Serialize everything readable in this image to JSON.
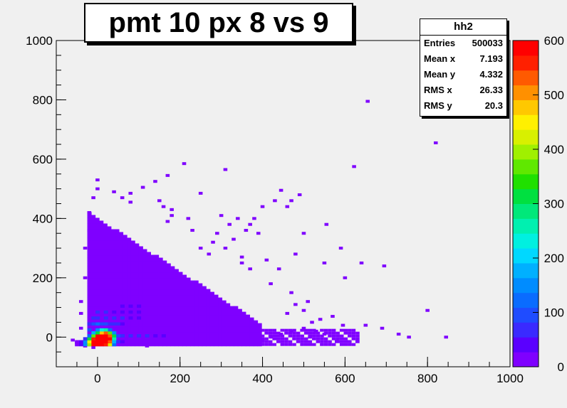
{
  "chart_data": {
    "type": "heatmap",
    "title": "pmt 10 px 8 vs 9",
    "xlim": [
      -100,
      1000
    ],
    "ylim": [
      -100,
      1000
    ],
    "x_ticks": [
      0,
      200,
      400,
      600,
      800,
      1000
    ],
    "y_ticks": [
      0,
      200,
      400,
      600,
      800,
      1000
    ],
    "colorbar": {
      "range": [
        0,
        600
      ],
      "ticks": [
        0,
        100,
        200,
        300,
        400,
        500,
        600
      ],
      "palette": [
        "#7f00ff",
        "#5a00ff",
        "#3a2aff",
        "#1f4cff",
        "#0a6cff",
        "#008cff",
        "#00b0ff",
        "#00d8ff",
        "#00f0e0",
        "#00f0b0",
        "#00e87a",
        "#00e040",
        "#20e000",
        "#60e800",
        "#a0f000",
        "#d8f000",
        "#fff000",
        "#ffc800",
        "#ff9000",
        "#ff5a00",
        "#ff2000",
        "#ff0000"
      ]
    },
    "bin_width": 9.6,
    "cells": [
      [
        -50,
        -25,
        8
      ],
      [
        -40,
        -25,
        40
      ],
      [
        -30,
        -25,
        140
      ],
      [
        -20,
        -25,
        400
      ],
      [
        -10,
        -25,
        580
      ],
      [
        0,
        -25,
        600
      ],
      [
        10,
        -25,
        600
      ],
      [
        20,
        -25,
        560
      ],
      [
        30,
        -25,
        420
      ],
      [
        40,
        -25,
        120
      ],
      [
        -50,
        -15,
        6
      ],
      [
        -40,
        -15,
        30
      ],
      [
        -30,
        -15,
        160
      ],
      [
        -20,
        -15,
        450
      ],
      [
        -10,
        -15,
        600
      ],
      [
        0,
        -15,
        600
      ],
      [
        10,
        -15,
        600
      ],
      [
        20,
        -15,
        600
      ],
      [
        30,
        -15,
        520
      ],
      [
        40,
        -15,
        180
      ],
      [
        50,
        -15,
        60
      ],
      [
        60,
        -15,
        40
      ],
      [
        -30,
        -5,
        80
      ],
      [
        -20,
        -5,
        300
      ],
      [
        -10,
        -5,
        560
      ],
      [
        0,
        -5,
        600
      ],
      [
        10,
        -5,
        600
      ],
      [
        20,
        -5,
        600
      ],
      [
        30,
        -5,
        580
      ],
      [
        40,
        -5,
        260
      ],
      [
        -20,
        5,
        120
      ],
      [
        -10,
        5,
        380
      ],
      [
        0,
        5,
        580
      ],
      [
        10,
        5,
        600
      ],
      [
        20,
        5,
        600
      ],
      [
        30,
        5,
        520
      ],
      [
        40,
        5,
        300
      ],
      [
        50,
        5,
        100
      ],
      [
        -10,
        15,
        180
      ],
      [
        0,
        15,
        320
      ],
      [
        10,
        15,
        480
      ],
      [
        20,
        15,
        520
      ],
      [
        30,
        15,
        380
      ],
      [
        40,
        15,
        160
      ],
      [
        0,
        25,
        140
      ],
      [
        10,
        25,
        240
      ],
      [
        20,
        25,
        260
      ],
      [
        30,
        25,
        120
      ],
      [
        60,
        5,
        80
      ],
      [
        80,
        5,
        70
      ],
      [
        100,
        5,
        65
      ],
      [
        120,
        5,
        55
      ],
      [
        140,
        5,
        45
      ],
      [
        160,
        5,
        40
      ],
      [
        -10,
        45,
        90
      ],
      [
        0,
        45,
        110
      ],
      [
        10,
        45,
        100
      ],
      [
        20,
        45,
        90
      ],
      [
        30,
        45,
        70
      ],
      [
        40,
        45,
        60
      ],
      [
        50,
        45,
        55
      ],
      [
        60,
        45,
        50
      ],
      [
        -10,
        65,
        70
      ],
      [
        0,
        65,
        80
      ],
      [
        20,
        65,
        75
      ],
      [
        40,
        65,
        60
      ],
      [
        60,
        65,
        55
      ],
      [
        80,
        65,
        50
      ],
      [
        100,
        65,
        45
      ],
      [
        0,
        85,
        60
      ],
      [
        20,
        85,
        55
      ],
      [
        40,
        85,
        50
      ],
      [
        60,
        85,
        45
      ],
      [
        80,
        85,
        40
      ],
      [
        100,
        85,
        40
      ],
      [
        60,
        105,
        40
      ],
      [
        80,
        105,
        38
      ],
      [
        100,
        105,
        36
      ],
      [
        -10,
        45,
        95
      ],
      [
        -20,
        25,
        90
      ],
      [
        -20,
        45,
        80
      ]
    ],
    "scatter": [
      [
        655,
        795,
        "#7f00ff"
      ],
      [
        820,
        655,
        "#7f00ff"
      ],
      [
        210,
        585,
        "#7f00ff"
      ],
      [
        310,
        565,
        "#7f00ff"
      ],
      [
        622,
        575,
        "#7f00ff"
      ],
      [
        140,
        525,
        "#7f00ff"
      ],
      [
        170,
        545,
        "#7f00ff"
      ],
      [
        110,
        505,
        "#7f00ff"
      ],
      [
        80,
        485,
        "#7f00ff"
      ],
      [
        80,
        455,
        "#7f00ff"
      ],
      [
        250,
        485,
        "#7f00ff"
      ],
      [
        445,
        495,
        "#7f00ff"
      ],
      [
        430,
        460,
        "#7f00ff"
      ],
      [
        490,
        480,
        "#7f00ff"
      ],
      [
        400,
        440,
        "#7f00ff"
      ],
      [
        460,
        440,
        "#7f00ff"
      ],
      [
        470,
        460,
        "#7f00ff"
      ],
      [
        555,
        380,
        "#7f00ff"
      ],
      [
        590,
        300,
        "#7f00ff"
      ],
      [
        695,
        240,
        "#7f00ff"
      ],
      [
        550,
        250,
        "#7f00ff"
      ],
      [
        600,
        200,
        "#7f00ff"
      ],
      [
        640,
        250,
        "#7f00ff"
      ],
      [
        800,
        90,
        "#7f00ff"
      ],
      [
        845,
        0,
        "#7f00ff"
      ],
      [
        755,
        0,
        "#7f00ff"
      ],
      [
        730,
        10,
        "#7f00ff"
      ],
      [
        690,
        30,
        "#7f00ff"
      ],
      [
        650,
        40,
        "#7f00ff"
      ],
      [
        595,
        40,
        "#7f00ff"
      ],
      [
        570,
        70,
        "#7f00ff"
      ],
      [
        550,
        10,
        "#7f00ff"
      ],
      [
        530,
        20,
        "#7f00ff"
      ],
      [
        515,
        0,
        "#7f00ff"
      ],
      [
        630,
        -15,
        "#7f00ff"
      ],
      [
        610,
        -15,
        "#7f00ff"
      ],
      [
        580,
        -15,
        "#7f00ff"
      ],
      [
        180,
        430,
        "#7f00ff"
      ],
      [
        220,
        400,
        "#7f00ff"
      ],
      [
        300,
        410,
        "#7f00ff"
      ],
      [
        340,
        400,
        "#7f00ff"
      ],
      [
        370,
        380,
        "#7f00ff"
      ],
      [
        380,
        400,
        "#7f00ff"
      ],
      [
        390,
        350,
        "#7f00ff"
      ],
      [
        330,
        330,
        "#7f00ff"
      ],
      [
        290,
        350,
        "#7f00ff"
      ],
      [
        280,
        320,
        "#7f00ff"
      ],
      [
        310,
        300,
        "#7f00ff"
      ],
      [
        350,
        270,
        "#7f00ff"
      ],
      [
        410,
        260,
        "#7f00ff"
      ],
      [
        500,
        350,
        "#7f00ff"
      ],
      [
        480,
        280,
        "#7f00ff"
      ],
      [
        440,
        230,
        "#7f00ff"
      ],
      [
        420,
        180,
        "#7f00ff"
      ],
      [
        470,
        150,
        "#7f00ff"
      ],
      [
        510,
        120,
        "#7f00ff"
      ],
      [
        480,
        110,
        "#7f00ff"
      ],
      [
        500,
        90,
        "#7f00ff"
      ],
      [
        460,
        80,
        "#7f00ff"
      ],
      [
        540,
        60,
        "#7f00ff"
      ],
      [
        520,
        50,
        "#7f00ff"
      ],
      [
        500,
        30,
        "#7f00ff"
      ],
      [
        470,
        20,
        "#7f00ff"
      ],
      [
        445,
        10,
        "#7f00ff"
      ],
      [
        420,
        0,
        "#7f00ff"
      ],
      [
        400,
        -10,
        "#7f00ff"
      ],
      [
        370,
        -10,
        "#7f00ff"
      ],
      [
        340,
        -15,
        "#7f00ff"
      ],
      [
        250,
        -15,
        "#7f00ff"
      ],
      [
        230,
        -15,
        "#7f00ff"
      ],
      [
        200,
        -15,
        "#7f00ff"
      ],
      [
        120,
        -30,
        "#7f00ff"
      ],
      [
        -30,
        -30,
        "#7f00ff"
      ],
      [
        -10,
        -35,
        "#7f00ff"
      ],
      [
        -60,
        -10,
        "#7f00ff"
      ],
      [
        -50,
        -20,
        "#7f00ff"
      ],
      [
        -40,
        30,
        "#7f00ff"
      ],
      [
        -40,
        80,
        "#7f00ff"
      ],
      [
        -40,
        120,
        "#7f00ff"
      ],
      [
        -30,
        200,
        "#7f00ff"
      ],
      [
        -30,
        300,
        "#7f00ff"
      ],
      [
        -20,
        360,
        "#7f00ff"
      ],
      [
        -20,
        420,
        "#7f00ff"
      ],
      [
        -10,
        470,
        "#7f00ff"
      ],
      [
        0,
        500,
        "#7f00ff"
      ],
      [
        0,
        530,
        "#7f00ff"
      ],
      [
        40,
        490,
        "#7f00ff"
      ],
      [
        60,
        470,
        "#7f00ff"
      ],
      [
        150,
        460,
        "#7f00ff"
      ],
      [
        160,
        440,
        "#7f00ff"
      ],
      [
        180,
        410,
        "#7f00ff"
      ],
      [
        170,
        390,
        "#7f00ff"
      ],
      [
        230,
        360,
        "#7f00ff"
      ],
      [
        250,
        300,
        "#7f00ff"
      ],
      [
        270,
        280,
        "#7f00ff"
      ],
      [
        350,
        250,
        "#7f00ff"
      ],
      [
        370,
        230,
        "#7f00ff"
      ],
      [
        320,
        380,
        "#7f00ff"
      ],
      [
        360,
        360,
        "#7f00ff"
      ]
    ],
    "scatter_regions": [
      [
        -30,
        460,
        -20,
        400,
        "#7f00ff"
      ]
    ],
    "x_samples_note": ""
  },
  "stats": {
    "title": "hh2",
    "rows": [
      {
        "label": "Entries",
        "value": "500033"
      },
      {
        "label": "Mean x",
        "value": "7.193"
      },
      {
        "label": "Mean y",
        "value": "4.332"
      },
      {
        "label": "RMS x",
        "value": "26.33"
      },
      {
        "label": "RMS y",
        "value": "20.3"
      }
    ]
  }
}
